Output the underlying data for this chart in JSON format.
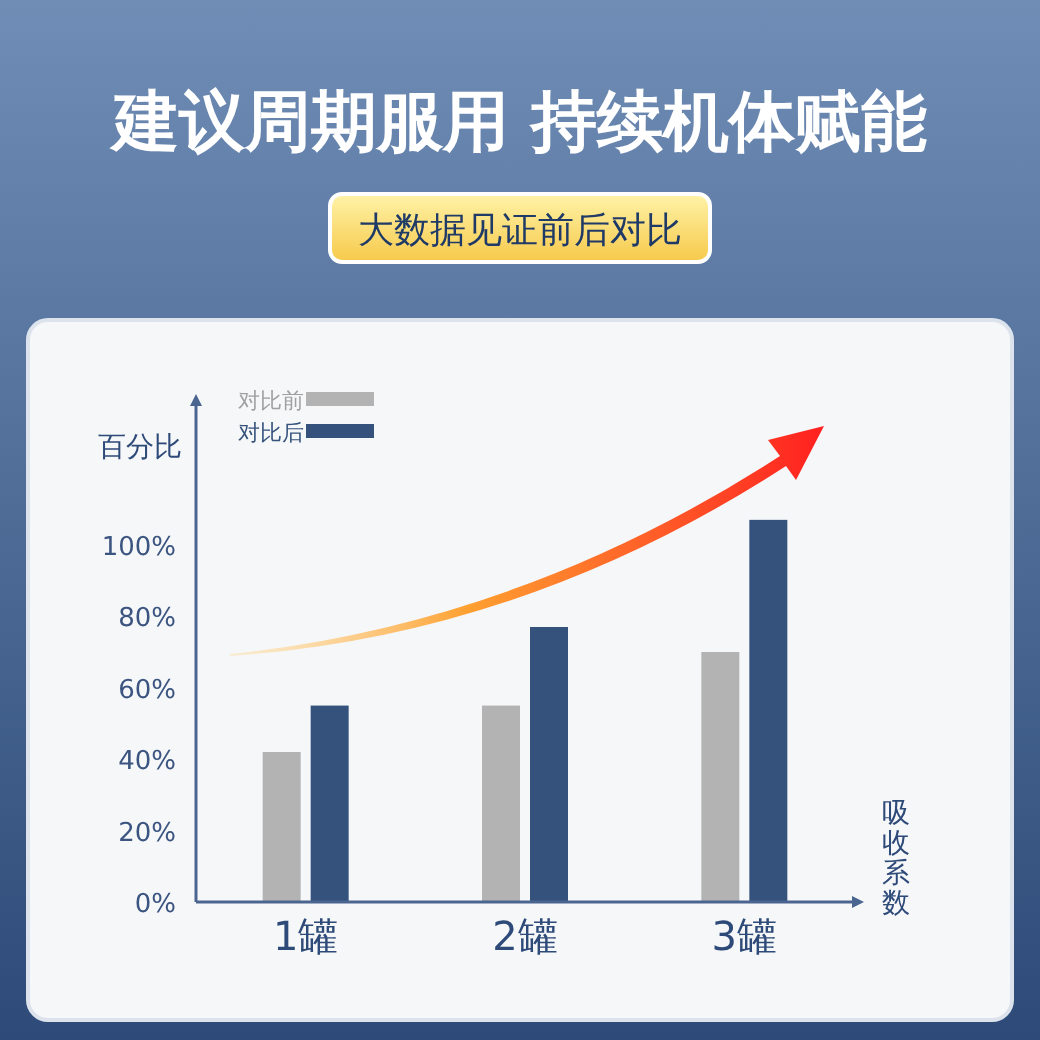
{
  "chart_data": {
    "type": "bar",
    "title": "建议周期服用 持续机体赋能",
    "subtitle": "大数据见证前后对比",
    "ylabel": "百分比",
    "xlabel": "吸收系数",
    "categories": [
      "1罐",
      "2罐",
      "3罐"
    ],
    "series": [
      {
        "name": "对比前",
        "color": "#b3b3b3",
        "values": [
          42,
          55,
          70
        ]
      },
      {
        "name": "对比后",
        "color": "#35527c",
        "values": [
          55,
          77,
          107
        ]
      }
    ],
    "ylim": [
      0,
      140
    ],
    "yticks": [
      {
        "value": 0,
        "label": "0%"
      },
      {
        "value": 20,
        "label": "20%"
      },
      {
        "value": 40,
        "label": "40%"
      },
      {
        "value": 60,
        "label": "60%"
      },
      {
        "value": 80,
        "label": "80%"
      },
      {
        "value": 100,
        "label": "100%"
      }
    ],
    "grid": false,
    "legend": "top left"
  }
}
